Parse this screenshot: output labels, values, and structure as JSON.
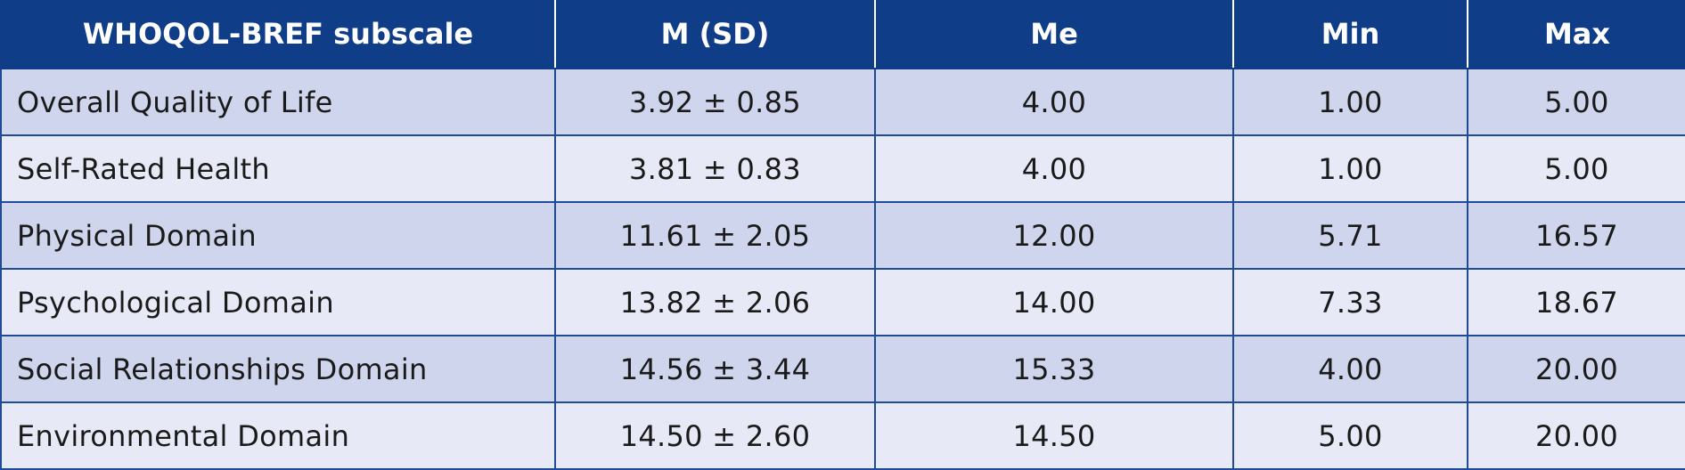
{
  "table": {
    "headers": [
      "WHOQOL-BREF subscale",
      "M (SD)",
      "Me",
      "Min",
      "Max"
    ],
    "rows": [
      [
        "Overall Quality of Life",
        "3.92 ± 0.85",
        "4.00",
        "1.00",
        "5.00"
      ],
      [
        "Self-Rated Health",
        "3.81 ± 0.83",
        "4.00",
        "1.00",
        "5.00"
      ],
      [
        "Physical Domain",
        "11.61 ± 2.05",
        "12.00",
        "5.71",
        "16.57"
      ],
      [
        "Psychological Domain",
        "13.82 ± 2.06",
        "14.00",
        "7.33",
        "18.67"
      ],
      [
        "Social Relationships Domain",
        "14.56 ± 3.44",
        "15.33",
        "4.00",
        "20.00"
      ],
      [
        "Environmental Domain",
        "14.50 ± 2.60",
        "14.50",
        "5.00",
        "20.00"
      ]
    ]
  },
  "colors": {
    "header_bg": "#0f3d87",
    "row_odd_bg": "#ced5ec",
    "row_even_bg": "#e7eaf6",
    "border": "#1f4a94"
  }
}
